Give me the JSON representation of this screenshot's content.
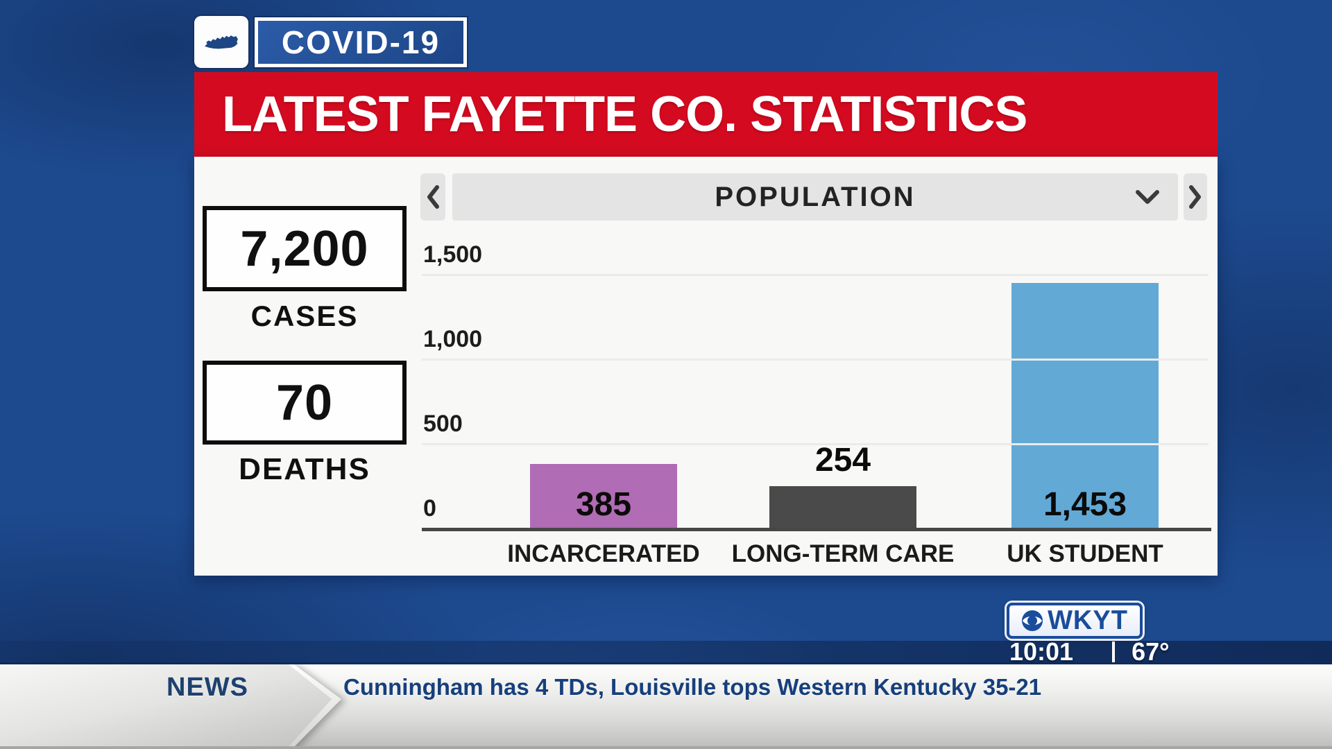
{
  "program_badge": {
    "label": "COVID-19",
    "state_icon": "kentucky-silhouette-icon"
  },
  "banner": {
    "title": "LATEST FAYETTE CO. STATISTICS",
    "bg_color": "#d40b20"
  },
  "stats": {
    "cases": {
      "value": "7,200",
      "label": "CASES"
    },
    "deaths": {
      "value": "70",
      "label": "DEATHS"
    }
  },
  "chart_header": {
    "selected": "POPULATION"
  },
  "chart_data": {
    "type": "bar",
    "title": "POPULATION",
    "categories": [
      "INCARCERATED",
      "LONG-TERM CARE",
      "UK STUDENT"
    ],
    "values": [
      385,
      254,
      1453
    ],
    "value_labels": [
      "385",
      "254",
      "1,453"
    ],
    "bar_colors": [
      "#b06cb4",
      "#4a4a4a",
      "#62a9d6"
    ],
    "value_label_placement": [
      "inside-bottom",
      "above",
      "inside-bottom"
    ],
    "xlabel": "",
    "ylabel": "",
    "ylim": [
      0,
      1500
    ],
    "yticks": [
      0,
      500,
      1000,
      1500
    ],
    "ytick_labels": [
      "0",
      "500",
      "1,000",
      "1,500"
    ],
    "grid": true,
    "legend": false
  },
  "station": {
    "call_sign": "WKYT",
    "network_icon": "cbs-eye-icon",
    "time": "10:01",
    "temperature": "67°"
  },
  "ticker": {
    "category": "NEWS",
    "headline": "Cunningham has 4 TDs, Louisville tops Western Kentucky 35-21"
  },
  "icons": {
    "badge_state": "kentucky-silhouette-icon",
    "selector_prev": "chevron-left-icon",
    "selector_next": "chevron-right-icon",
    "selector_dropdown": "chevron-down-icon",
    "network": "cbs-eye-icon"
  },
  "colors": {
    "background_blue": "#1d4a8f",
    "banner_red": "#d40b20",
    "bar_purple": "#b06cb4",
    "bar_dark_gray": "#4a4a4a",
    "bar_light_blue": "#62a9d6",
    "station_blue": "#1a4c9c"
  }
}
